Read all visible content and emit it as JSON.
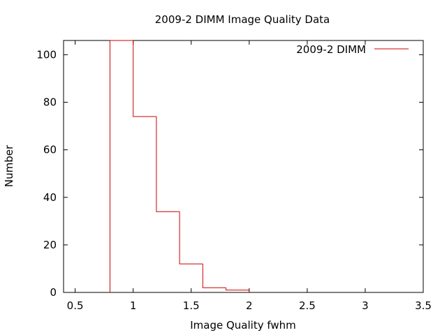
{
  "chart_data": {
    "type": "histogram-step",
    "title": "2009-2 DIMM Image Quality Data",
    "xlabel": "Image Quality fwhm",
    "ylabel": "Number",
    "xlim": [
      0.4,
      3.5
    ],
    "ylim": [
      0,
      106
    ],
    "xticks": [
      "0.5",
      "1",
      "1.5",
      "2",
      "2.5",
      "3",
      "3.5"
    ],
    "xtick_values": [
      0.5,
      1,
      1.5,
      2,
      2.5,
      3,
      3.5
    ],
    "yticks": [
      "0",
      "20",
      "40",
      "60",
      "80",
      "100"
    ],
    "ytick_values": [
      0,
      20,
      40,
      60,
      80,
      100
    ],
    "grid": false,
    "legend_position": "top-right",
    "series": [
      {
        "name": "2009-2 DIMM",
        "color": "#cc0000",
        "bins": [
          {
            "x0": 0.8,
            "x1": 1.0,
            "y": 106
          },
          {
            "x0": 1.0,
            "x1": 1.2,
            "y": 74
          },
          {
            "x0": 1.2,
            "x1": 1.4,
            "y": 34
          },
          {
            "x0": 1.4,
            "x1": 1.6,
            "y": 12
          },
          {
            "x0": 1.6,
            "x1": 1.8,
            "y": 2
          },
          {
            "x0": 1.8,
            "x1": 2.0,
            "y": 1
          }
        ]
      }
    ]
  }
}
